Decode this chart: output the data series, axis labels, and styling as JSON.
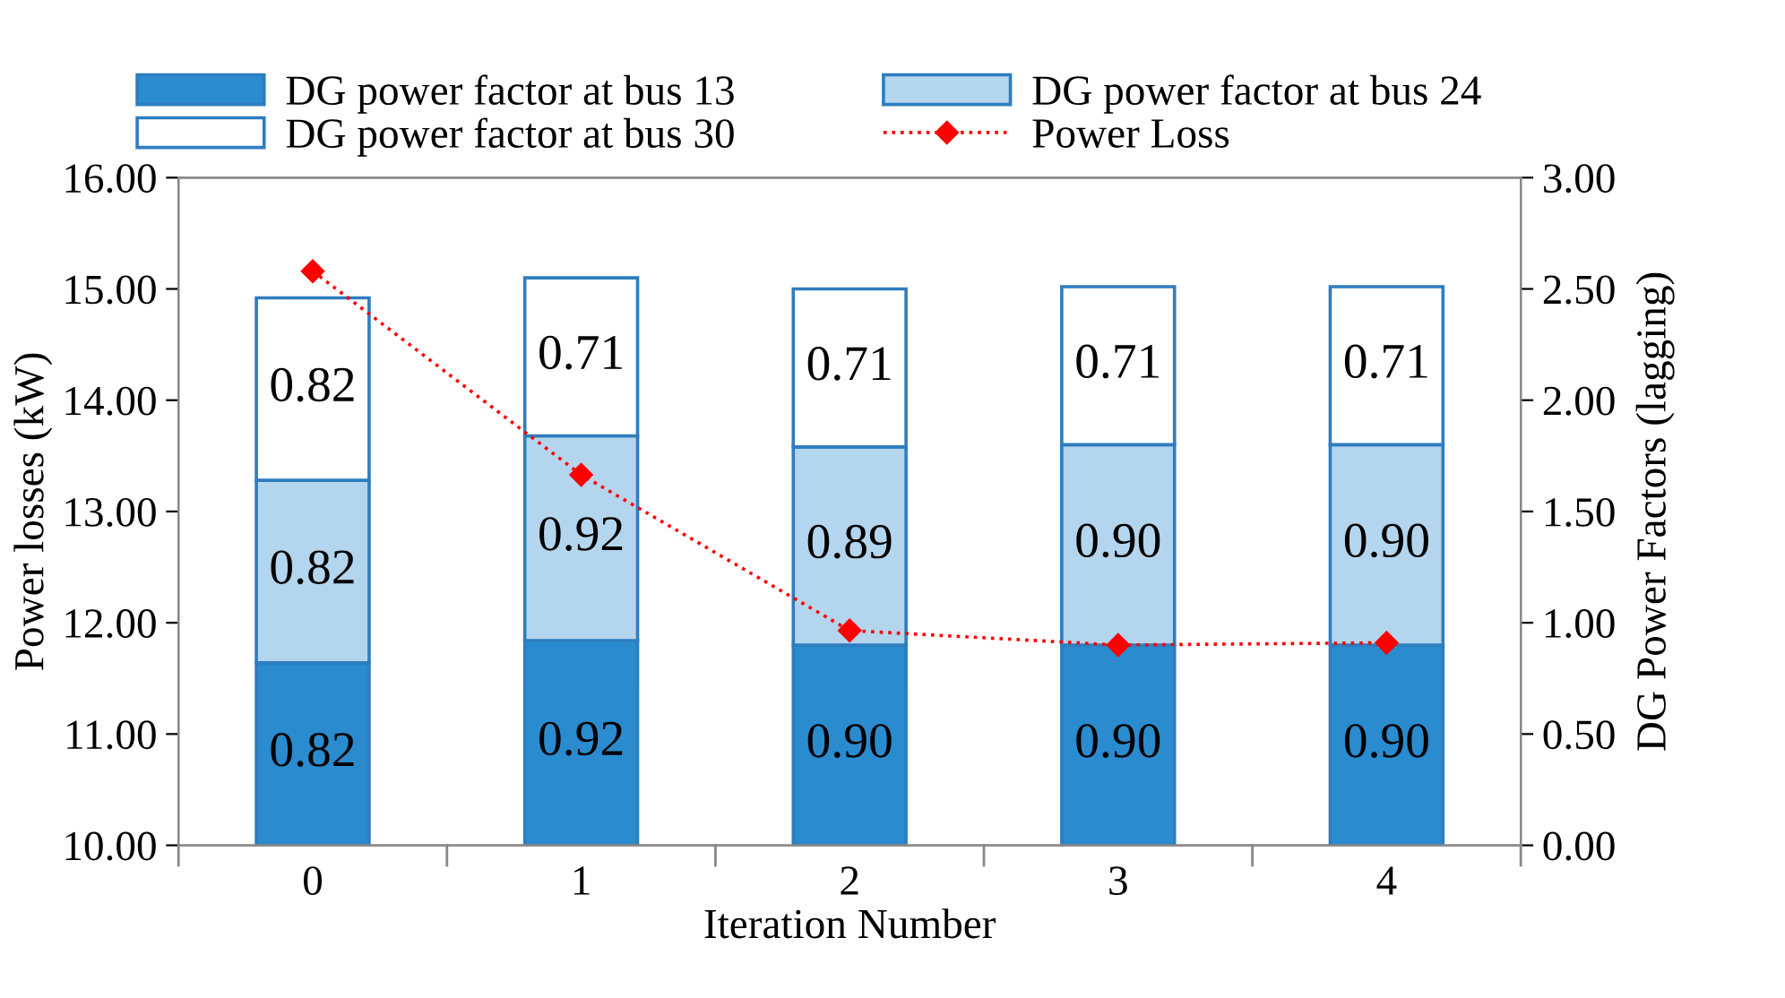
{
  "chart_data": {
    "type": "bar",
    "stacked": true,
    "categories": [
      "0",
      "1",
      "2",
      "3",
      "4"
    ],
    "xlabel": "Iteration Number",
    "ylabel": "Power losses (kW)",
    "y2label": "DG Power Factors (lagging)",
    "series": [
      {
        "name": "DG power factor at bus 13",
        "color": "#2a8bcf",
        "axis": "y2",
        "values": [
          0.82,
          0.92,
          0.9,
          0.9,
          0.9
        ],
        "value_labels": [
          "0.82",
          "0.92",
          "0.90",
          "0.90",
          "0.90"
        ]
      },
      {
        "name": "DG power factor at bus 24",
        "color": "#b4d5ee",
        "axis": "y2",
        "values": [
          0.82,
          0.92,
          0.89,
          0.9,
          0.9
        ],
        "value_labels": [
          "0.82",
          "0.92",
          "0.89",
          "0.90",
          "0.90"
        ]
      },
      {
        "name": "DG power factor at bus 30",
        "color": "#ffffff",
        "axis": "y2",
        "values": [
          0.82,
          0.71,
          0.71,
          0.71,
          0.71
        ],
        "value_labels": [
          "0.82",
          "0.71",
          "0.71",
          "0.71",
          "0.71"
        ]
      },
      {
        "name": "Power Loss",
        "type": "line",
        "color": "#ff0000",
        "marker": "diamond",
        "line_style": "dotted",
        "values": [
          15.16,
          13.33,
          11.93,
          11.8,
          11.82
        ]
      }
    ],
    "ylim": [
      10,
      16
    ],
    "yticks": [
      {
        "value": 10,
        "label": "10.00"
      },
      {
        "value": 11,
        "label": "11.00"
      },
      {
        "value": 12,
        "label": "12.00"
      },
      {
        "value": 13,
        "label": "13.00"
      },
      {
        "value": 14,
        "label": "14.00"
      },
      {
        "value": 15,
        "label": "15.00"
      },
      {
        "value": 16,
        "label": "16.00"
      }
    ],
    "y2lim": [
      0,
      3
    ],
    "y2ticks": [
      {
        "value": 0,
        "label": "0.00"
      },
      {
        "value": 0.5,
        "label": "0.50"
      },
      {
        "value": 1,
        "label": "1.00"
      },
      {
        "value": 1.5,
        "label": "1.50"
      },
      {
        "value": 2,
        "label": "2.00"
      },
      {
        "value": 2.5,
        "label": "2.50"
      },
      {
        "value": 3,
        "label": "3.00"
      }
    ],
    "grid": false,
    "legend": "top"
  }
}
